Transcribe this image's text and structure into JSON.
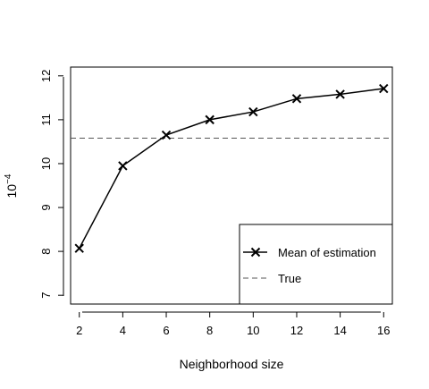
{
  "chart_data": {
    "type": "line",
    "title": "",
    "xlabel": "Neighborhood size",
    "ylabel_base": "10",
    "ylabel_exp": "−4",
    "x": [
      2,
      4,
      6,
      8,
      10,
      12,
      14,
      16
    ],
    "xlim": [
      1.6,
      16.4
    ],
    "ylim": [
      6.8,
      12.2
    ],
    "xticks": [
      2,
      4,
      6,
      8,
      10,
      12,
      14,
      16
    ],
    "yticks": [
      7,
      8,
      9,
      10,
      11,
      12
    ],
    "grid": false,
    "legend_position": "bottom-right",
    "series": [
      {
        "name": "Mean of estimation",
        "values": [
          8.07,
          9.95,
          10.65,
          11.0,
          11.18,
          11.48,
          11.58,
          11.71
        ],
        "style": "solid",
        "marker": "x",
        "color": "#000000"
      }
    ],
    "reference_lines": [
      {
        "name": "True",
        "y": 10.58,
        "style": "dashed",
        "color": "#555555"
      }
    ]
  }
}
